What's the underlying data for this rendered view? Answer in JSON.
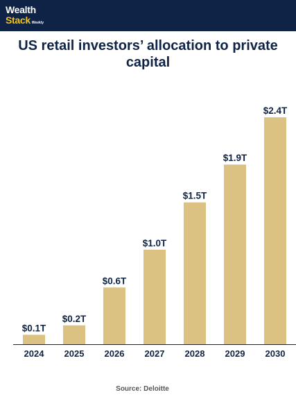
{
  "brand": {
    "line1": "Wealth",
    "line2": "Stack",
    "line3": "Weekly"
  },
  "colors": {
    "header_bg": "#0e2346",
    "bar": "#dbc283",
    "text": "#0e2346",
    "logo_accent": "#f2c21a"
  },
  "source": "Source: Deloitte",
  "chart_data": {
    "type": "bar",
    "title": "US retail investors’ allocation to private capital",
    "categories": [
      "2024",
      "2025",
      "2026",
      "2027",
      "2028",
      "2029",
      "2030"
    ],
    "values": [
      0.1,
      0.2,
      0.6,
      1.0,
      1.5,
      1.9,
      2.4
    ],
    "data_labels": [
      "$0.1T",
      "$0.2T",
      "$0.6T",
      "$1.0T",
      "$1.5T",
      "$1.9T",
      "$2.4T"
    ],
    "xlabel": "",
    "ylabel": "",
    "ylim": [
      0,
      2.4
    ],
    "grid": false,
    "legend": "none"
  }
}
